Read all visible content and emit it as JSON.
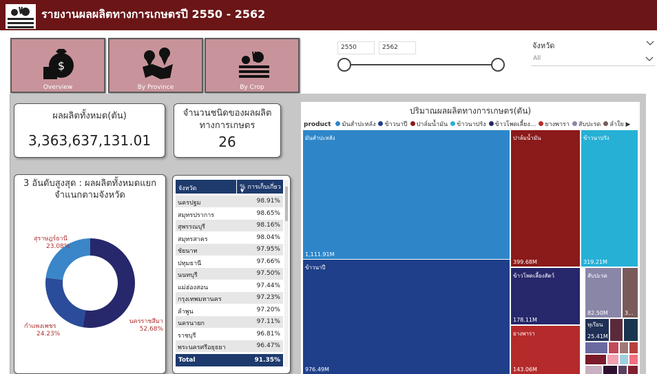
{
  "header": {
    "title": "รายงานผลผลิตทางการเกษตรปี 2550 - 2562"
  },
  "nav": [
    {
      "label": "Overview",
      "icon": "money-bag-icon"
    },
    {
      "label": "By Province",
      "icon": "map-pin-icon"
    },
    {
      "label": "By Crop",
      "icon": "crop-icon"
    }
  ],
  "year_range": {
    "start": "2550",
    "end": "2562"
  },
  "province_filter": {
    "label": "จังหวัด",
    "value": "All"
  },
  "total_card": {
    "title": "ผลผลิตทั้งหมด(ตัน)",
    "value": "3,363,637,131.01"
  },
  "types_card": {
    "title": "จำนวนชนิดของผลผลิต ทางการเกษตร",
    "value": "26"
  },
  "donut_card": {
    "title": "3 อันดับสูงสุด : ผลผลิตทั้งหมดแยกจำแนกตามจังหวัด",
    "slices": [
      {
        "name": "นครราชสีมา",
        "pct": "52.68%",
        "value": 52.68,
        "color": "#27276b"
      },
      {
        "name": "กำแพงเพชร",
        "pct": "24.23%",
        "value": 24.23,
        "color": "#2a4c9a"
      },
      {
        "name": "สุราษฎร์ธานี",
        "pct": "23.08%",
        "value": 23.08,
        "color": "#3a86c8"
      }
    ]
  },
  "table": {
    "headers": [
      "จังหวัด",
      "% การเก็บเกี่ยว"
    ],
    "rows": [
      [
        "นครปฐม",
        "98.91%"
      ],
      [
        "สมุทรปราการ",
        "98.65%"
      ],
      [
        "สุพรรณบุรี",
        "98.16%"
      ],
      [
        "สมุทรสาคร",
        "98.04%"
      ],
      [
        "ชัยนาท",
        "97.95%"
      ],
      [
        "ปทุมธานี",
        "97.66%"
      ],
      [
        "นนทบุรี",
        "97.50%"
      ],
      [
        "แม่ฮ่องสอน",
        "97.44%"
      ],
      [
        "กรุงเทพมหานคร",
        "97.23%"
      ],
      [
        "ลำพูน",
        "97.20%"
      ],
      [
        "นครนายก",
        "97.11%"
      ],
      [
        "ราชบุรี",
        "96.81%"
      ],
      [
        "พระนครศรีอยุธยา",
        "96.47%"
      ]
    ],
    "total_label": "Total",
    "total_value": "91.35%"
  },
  "treemap": {
    "title": "ปริมาณผลผลิตทางการเกษตร(ตัน)",
    "legend_label": "product",
    "legend": [
      {
        "name": "มันสำปะหลัง",
        "color": "#2e86c9"
      },
      {
        "name": "ข้าวนาปี",
        "color": "#1f3f8a"
      },
      {
        "name": "ปาล์มน้ำมัน",
        "color": "#8b1a1a"
      },
      {
        "name": "ข้าวนาปรัง",
        "color": "#26b0d6"
      },
      {
        "name": "ข้าวโพดเลี้ยง...",
        "color": "#27276b"
      },
      {
        "name": "ยางพารา",
        "color": "#b52b2b"
      },
      {
        "name": "สับปะรด",
        "color": "#8a86a8"
      },
      {
        "name": "ลำใย",
        "color": "#7a5a5a"
      }
    ],
    "tiles": [
      {
        "name": "มันสำปะหลัง",
        "value": "1,111.91M",
        "color": "#2e86c9"
      },
      {
        "name": "ข้าวนาปี",
        "value": "976.49M",
        "color": "#1f3f8a"
      },
      {
        "name": "ปาล์มน้ำมัน",
        "value": "399.68M",
        "color": "#8b1a1a"
      },
      {
        "name": "ข้าวนาปรัง",
        "value": "319.21M",
        "color": "#26b0d6"
      },
      {
        "name": "ข้าวโพดเลี้ยงสัตว์",
        "value": "178.11M",
        "color": "#27276b"
      },
      {
        "name": "สับปะรด",
        "value": "82.50M",
        "color": "#8a86a8"
      },
      {
        "name": "",
        "value": "3...",
        "color": "#7a5a5a"
      },
      {
        "name": "ยางพารา",
        "value": "143.06M",
        "color": "#b52b2b"
      },
      {
        "name": "ทุเรียน",
        "value": "25.41M",
        "color": "#1f2f55"
      }
    ]
  }
}
